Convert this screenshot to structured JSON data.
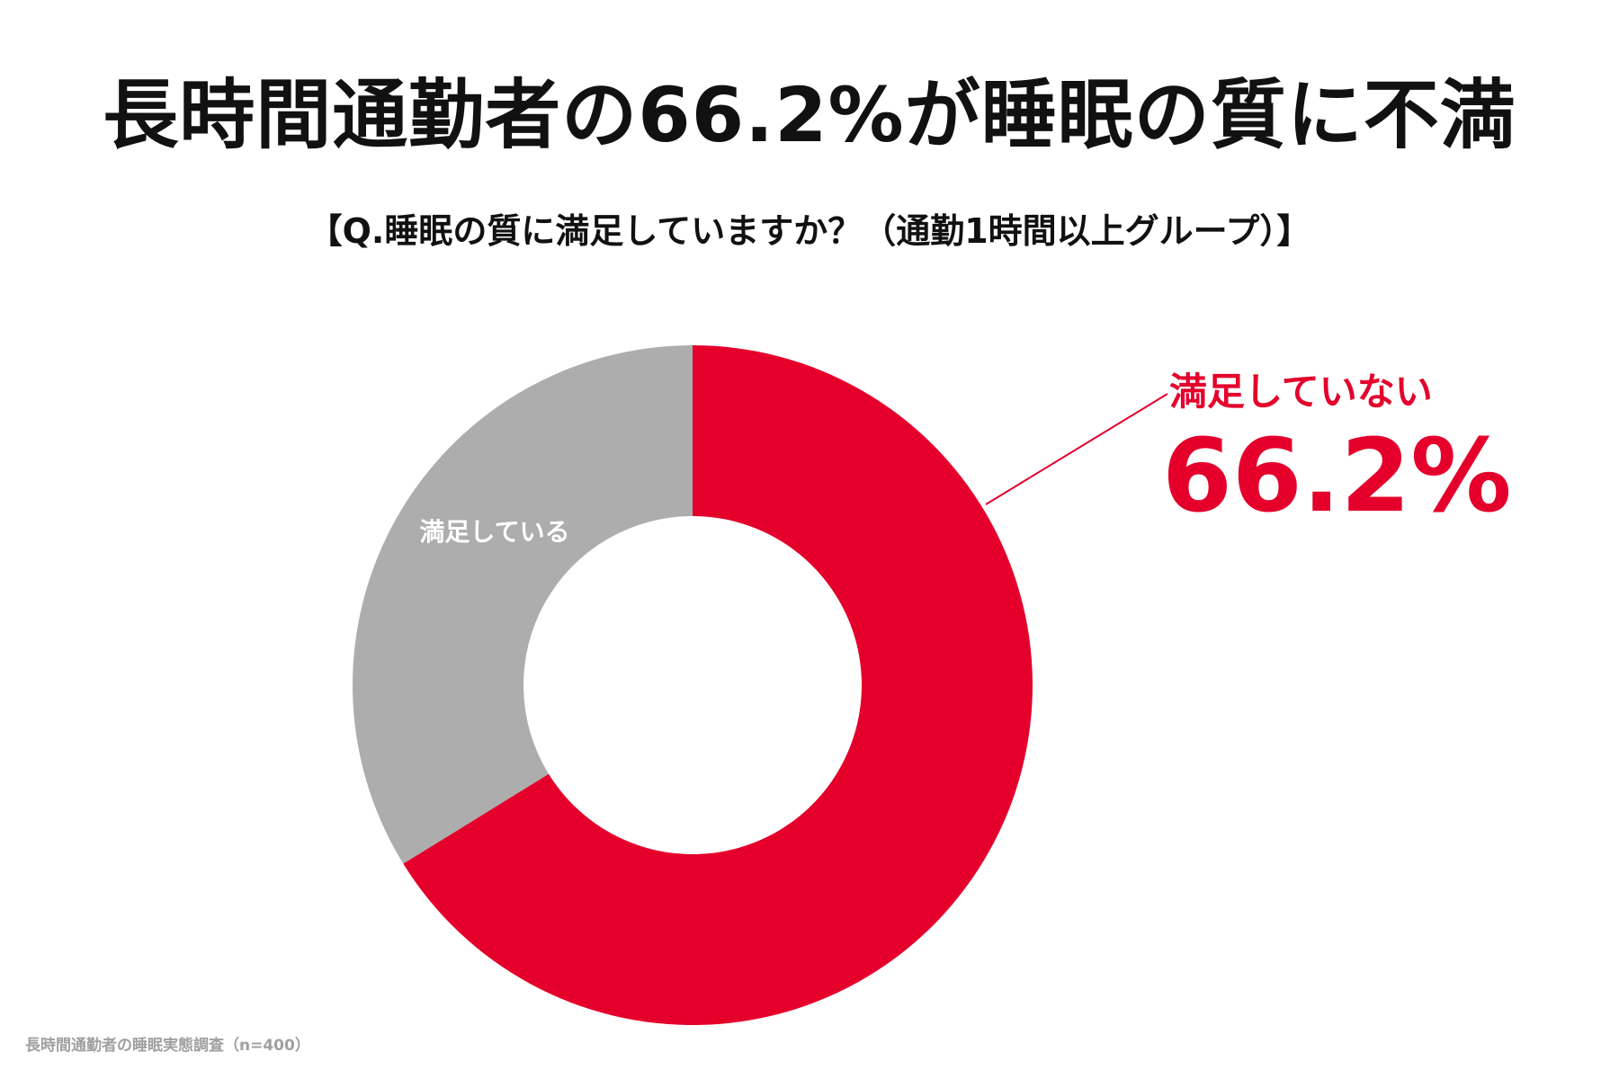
{
  "title": "長時間通勤者の66.2%が睡眠の質に不満",
  "subtitle": "【Q.睡眠の質に満足していますか？（通勤1時間以上グループ）】",
  "source_note": "長時間通勤者の睡眠実態調査（n=400）",
  "chart_data": {
    "type": "pie",
    "style": "donut",
    "slices": [
      {
        "label": "満足していない",
        "value": 66.2,
        "value_label": "66.2%",
        "color": "#e4002b"
      },
      {
        "label": "満足している",
        "value": 33.8,
        "color": "#adadad"
      }
    ],
    "start_angle": "12 o'clock",
    "direction": "clockwise",
    "label_colors": {
      "highlight": "#e4002b",
      "inside": "#ffffff"
    }
  }
}
